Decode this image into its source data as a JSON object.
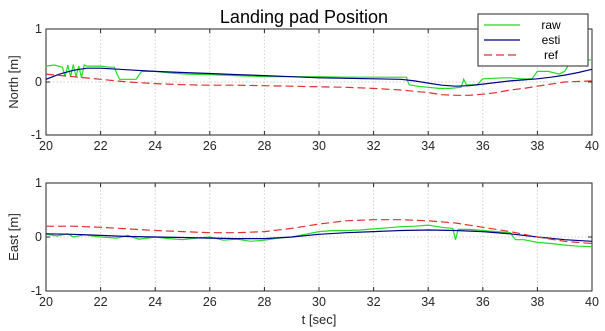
{
  "chart_data": [
    {
      "type": "line",
      "title": "Landing pad Position",
      "xlabel": "",
      "ylabel": "North [m]",
      "xlim": [
        20,
        40
      ],
      "ylim": [
        -1,
        1
      ],
      "xticks": [
        20,
        22,
        24,
        26,
        28,
        30,
        32,
        34,
        36,
        38,
        40
      ],
      "yticks": [
        -1,
        0,
        1
      ],
      "grid": true,
      "legend": {
        "position": "top-right",
        "entries": [
          "raw",
          "esti",
          "ref"
        ]
      },
      "series": [
        {
          "name": "raw",
          "color": "#22dd22",
          "style": "solid",
          "x": [
            20,
            20.3,
            20.6,
            20.7,
            20.8,
            20.9,
            21.0,
            21.1,
            21.2,
            21.3,
            21.4,
            21.5,
            21.6,
            21.8,
            22.0,
            22.3,
            22.5,
            22.6,
            22.7,
            22.9,
            23.1,
            23.3,
            23.5,
            23.7,
            24.0,
            24.4,
            24.8,
            25.2,
            26.0,
            27.0,
            28.0,
            29.0,
            30.0,
            31.0,
            32.0,
            33.0,
            33.2,
            33.3,
            33.6,
            34.0,
            34.4,
            34.8,
            35.2,
            35.3,
            35.4,
            35.6,
            35.8,
            36.0,
            36.4,
            36.8,
            37.0,
            37.4,
            37.8,
            38.0,
            38.4,
            38.8,
            39.0,
            39.2,
            39.4,
            39.6,
            40.0
          ],
          "y": [
            0.3,
            0.32,
            0.28,
            0.1,
            0.32,
            0.1,
            0.33,
            0.1,
            0.3,
            0.08,
            0.32,
            0.3,
            0.3,
            0.3,
            0.3,
            0.28,
            0.28,
            0.15,
            0.05,
            0.05,
            0.05,
            0.05,
            0.2,
            0.2,
            0.2,
            0.18,
            0.16,
            0.15,
            0.14,
            0.12,
            0.1,
            0.1,
            0.1,
            0.09,
            0.09,
            0.09,
            0.09,
            -0.05,
            -0.08,
            -0.1,
            -0.12,
            -0.12,
            -0.1,
            0.05,
            -0.05,
            -0.05,
            -0.05,
            0.06,
            0.07,
            0.08,
            0.08,
            0.06,
            0.06,
            0.2,
            0.2,
            0.15,
            0.2,
            0.38,
            0.4,
            0.4,
            0.42
          ]
        },
        {
          "name": "esti",
          "color": "#00008b",
          "style": "solid",
          "x": [
            20,
            20.5,
            21,
            21.5,
            22,
            23,
            24,
            25,
            26,
            27,
            28,
            29,
            30,
            31,
            32,
            33,
            33.5,
            34,
            34.5,
            35,
            35.5,
            36,
            36.5,
            37,
            37.5,
            38,
            38.5,
            39,
            39.5,
            40
          ],
          "y": [
            0.05,
            0.15,
            0.22,
            0.26,
            0.26,
            0.23,
            0.2,
            0.18,
            0.16,
            0.14,
            0.12,
            0.1,
            0.08,
            0.07,
            0.06,
            0.05,
            0.02,
            -0.02,
            -0.06,
            -0.08,
            -0.07,
            -0.04,
            -0.01,
            0.02,
            0.04,
            0.06,
            0.09,
            0.13,
            0.18,
            0.24
          ]
        },
        {
          "name": "ref",
          "color": "#e03030",
          "style": "dashed",
          "x": [
            20,
            21,
            22,
            23,
            24,
            25,
            26,
            27,
            28,
            29,
            30,
            31,
            32,
            33,
            34,
            34.5,
            35,
            35.5,
            36,
            36.5,
            37,
            37.5,
            38,
            39,
            40
          ],
          "y": [
            0.15,
            0.1,
            0.05,
            0.0,
            -0.03,
            -0.05,
            -0.06,
            -0.06,
            -0.07,
            -0.08,
            -0.09,
            -0.1,
            -0.12,
            -0.15,
            -0.2,
            -0.24,
            -0.25,
            -0.25,
            -0.23,
            -0.2,
            -0.15,
            -0.12,
            -0.08,
            0.0,
            0.02
          ]
        }
      ]
    },
    {
      "type": "line",
      "title": "",
      "xlabel": "t [sec]",
      "ylabel": "East [m]",
      "xlim": [
        20,
        40
      ],
      "ylim": [
        -1,
        1
      ],
      "xticks": [
        20,
        22,
        24,
        26,
        28,
        30,
        32,
        34,
        36,
        38,
        40
      ],
      "yticks": [
        -1,
        0,
        1
      ],
      "grid": true,
      "series": [
        {
          "name": "raw",
          "color": "#22dd22",
          "style": "solid",
          "x": [
            20,
            20.4,
            20.8,
            21.0,
            21.4,
            22.0,
            22.6,
            23.0,
            23.4,
            24.0,
            24.5,
            25.0,
            25.5,
            26.0,
            26.5,
            27.0,
            27.5,
            28.0,
            28.5,
            29.0,
            29.5,
            30.0,
            30.5,
            31.0,
            31.5,
            32.0,
            32.5,
            33.0,
            33.5,
            34.0,
            34.5,
            34.9,
            35.0,
            35.1,
            35.5,
            36.0,
            36.5,
            37.0,
            37.2,
            37.5,
            38.0,
            38.5,
            39.0,
            39.5,
            40.0
          ],
          "y": [
            0.05,
            0.02,
            0.06,
            0.0,
            0.04,
            0.0,
            -0.02,
            0.03,
            -0.04,
            0.0,
            -0.03,
            -0.05,
            -0.02,
            0.0,
            -0.06,
            -0.04,
            -0.08,
            -0.06,
            -0.02,
            0.0,
            0.05,
            0.1,
            0.12,
            0.12,
            0.13,
            0.15,
            0.17,
            0.19,
            0.2,
            0.22,
            0.18,
            0.16,
            -0.05,
            0.14,
            0.14,
            0.12,
            0.1,
            0.08,
            -0.05,
            -0.05,
            -0.1,
            -0.12,
            -0.15,
            -0.17,
            -0.18
          ]
        },
        {
          "name": "esti",
          "color": "#00008b",
          "style": "solid",
          "x": [
            20,
            21,
            22,
            23,
            24,
            25,
            26,
            27,
            28,
            29,
            30,
            31,
            32,
            33,
            34,
            35,
            36,
            37,
            38,
            39,
            40
          ],
          "y": [
            0.06,
            0.05,
            0.03,
            0.01,
            0.0,
            -0.01,
            -0.02,
            -0.03,
            -0.03,
            0.0,
            0.05,
            0.08,
            0.1,
            0.12,
            0.13,
            0.12,
            0.1,
            0.06,
            0.0,
            -0.05,
            -0.08
          ]
        },
        {
          "name": "ref",
          "color": "#e03030",
          "style": "dashed",
          "x": [
            20,
            21,
            22,
            23,
            24,
            25,
            26,
            27,
            28,
            29,
            30,
            31,
            32,
            33,
            34,
            35,
            36,
            37,
            38,
            39,
            40
          ],
          "y": [
            0.2,
            0.2,
            0.18,
            0.15,
            0.12,
            0.1,
            0.08,
            0.08,
            0.1,
            0.16,
            0.24,
            0.3,
            0.32,
            0.32,
            0.3,
            0.26,
            0.18,
            0.1,
            0.0,
            -0.08,
            -0.12
          ]
        }
      ]
    }
  ]
}
